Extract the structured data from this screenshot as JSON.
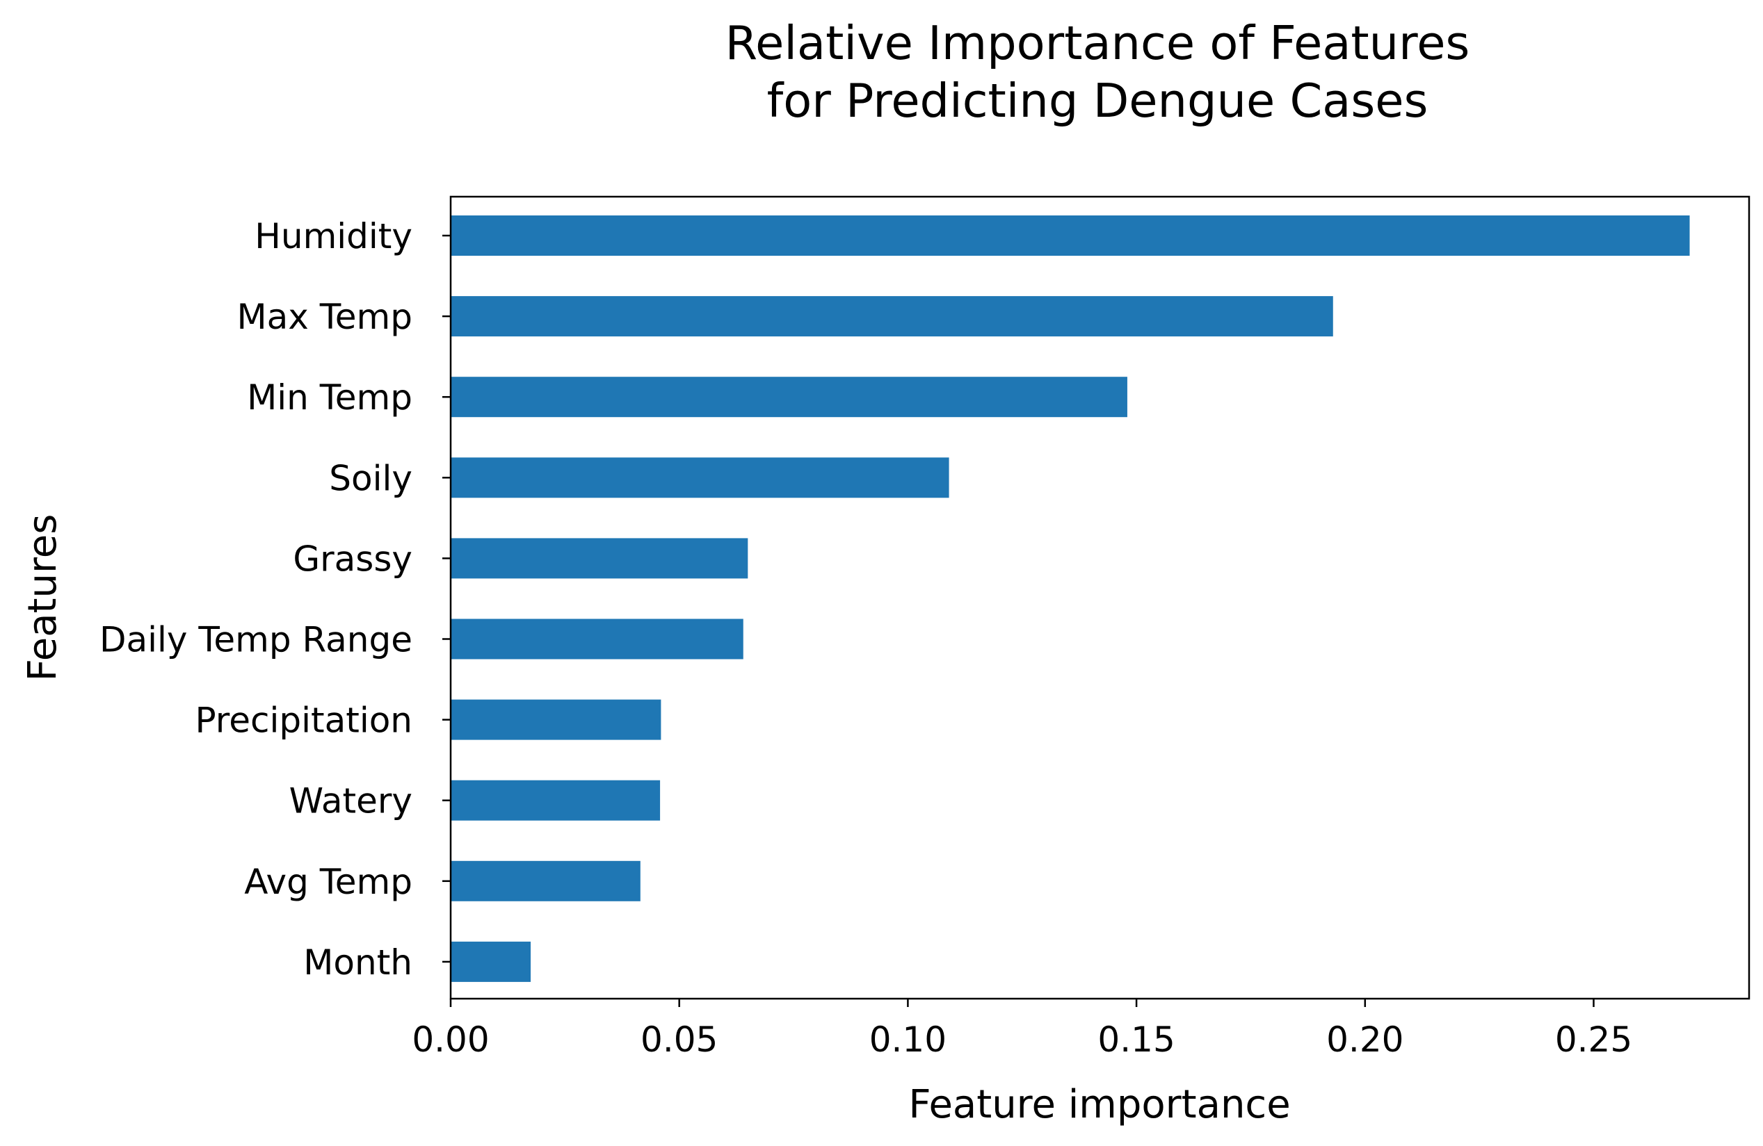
{
  "chart_data": {
    "type": "bar",
    "orientation": "horizontal",
    "title": [
      "Relative Importance of Features",
      "for Predicting Dengue Cases"
    ],
    "xlabel": "Feature importance",
    "ylabel": "Features",
    "categories": [
      "Humidity",
      "Max Temp",
      "Min Temp",
      "Soily",
      "Grassy",
      "Daily Temp Range",
      "Precipitation",
      "Watery",
      "Avg Temp",
      "Month"
    ],
    "values": [
      0.271,
      0.193,
      0.148,
      0.109,
      0.065,
      0.064,
      0.046,
      0.0458,
      0.0415,
      0.0175
    ],
    "xlim": [
      0,
      0.284
    ],
    "xticks": [
      0.0,
      0.05,
      0.1,
      0.15,
      0.2,
      0.25
    ],
    "xtick_labels": [
      "0.00",
      "0.05",
      "0.10",
      "0.15",
      "0.20",
      "0.25"
    ],
    "bar_color": "#1f77b4",
    "grid": false,
    "legend": "none"
  }
}
